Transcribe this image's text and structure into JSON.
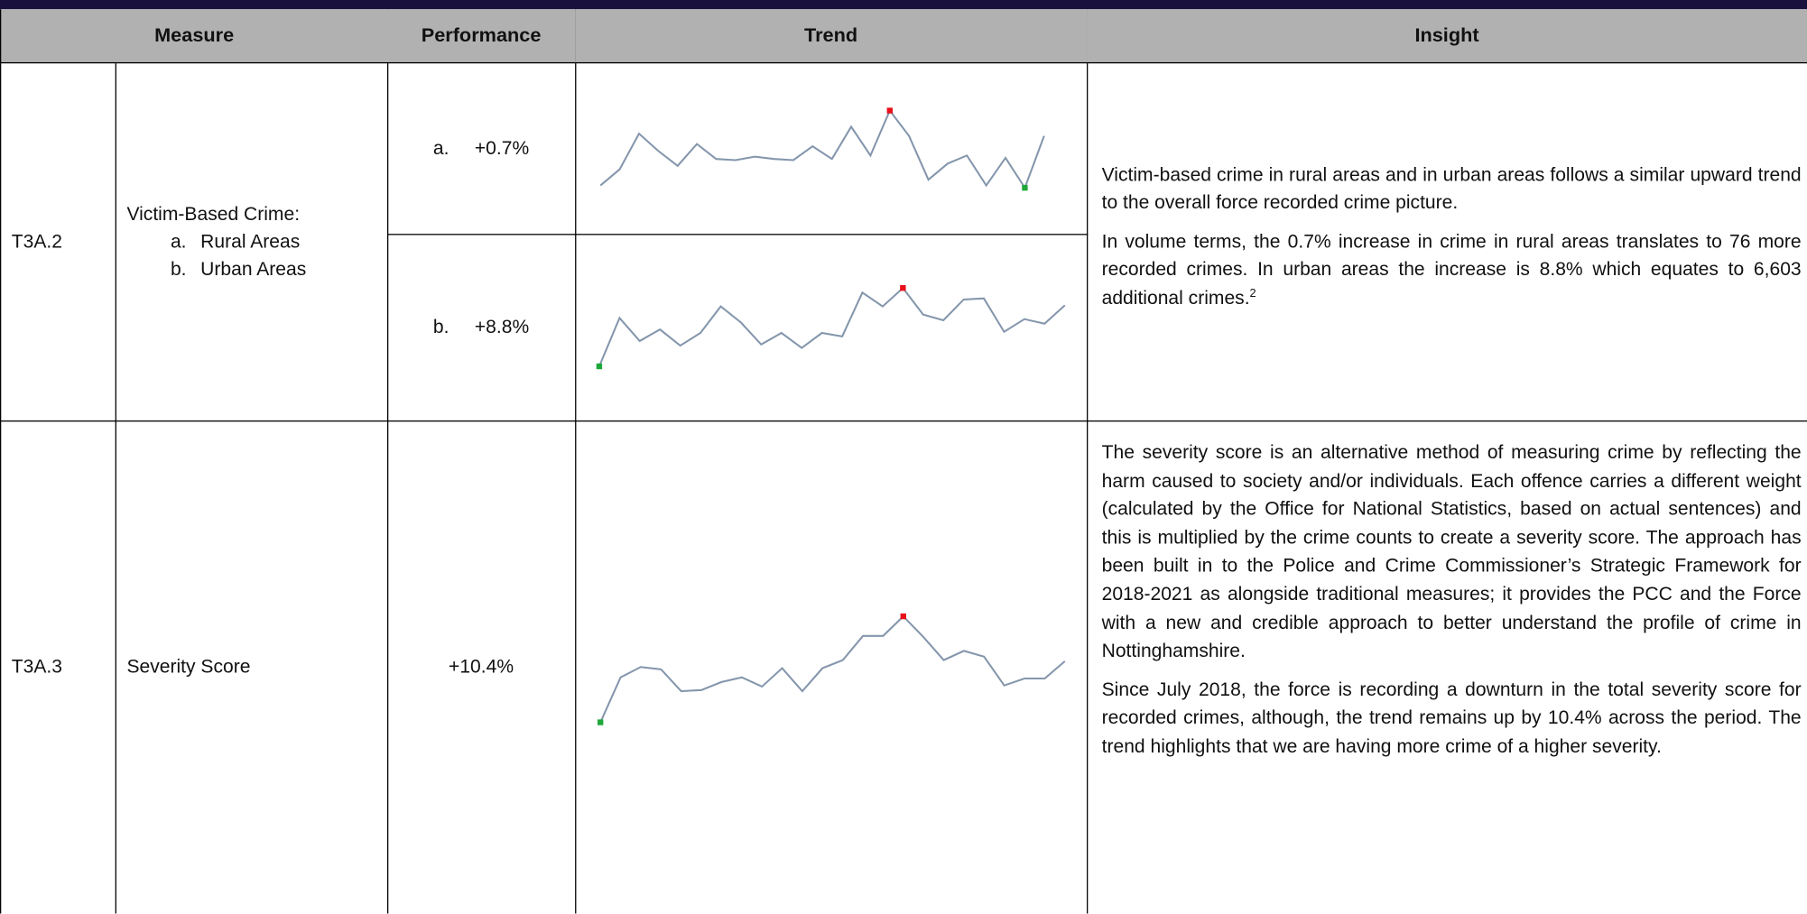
{
  "header": [
    "Measure",
    "Performance",
    "Trend",
    "Insight"
  ],
  "rows": [
    {
      "id": "T3A.2",
      "measure_title": "Victim-Based Crime:",
      "measure_items": [
        {
          "marker": "a.",
          "text": "Rural Areas"
        },
        {
          "marker": "b.",
          "text": "Urban Areas"
        }
      ],
      "performance": [
        {
          "marker": "a.",
          "value": "+0.7%"
        },
        {
          "marker": "b.",
          "value": "+8.8%"
        }
      ],
      "trends": [
        {
          "values": [
            9,
            23,
            54,
            39,
            26,
            45,
            32,
            31,
            34,
            32,
            31,
            43,
            32,
            60,
            35,
            74,
            52,
            14,
            28,
            35,
            9,
            33,
            7,
            52
          ]
        },
        {
          "values": [
            12,
            54,
            34,
            44,
            30,
            41,
            64,
            50,
            31,
            41,
            28,
            41,
            38,
            76,
            64,
            80,
            57,
            52,
            70,
            71,
            42,
            53,
            49,
            65
          ]
        }
      ],
      "insight": [
        "Victim-based crime in rural areas and in urban areas follows a similar upward trend to the overall force recorded crime picture.",
        "In volume terms, the 0.7% increase in crime in rural areas translates to 76 more recorded crimes.  In urban areas the increase is 8.8% which equates to 6,603 additional crimes."
      ],
      "footnote": "2"
    },
    {
      "id": "T3A.3",
      "measure_title": "Severity Score",
      "performance": [
        {
          "value": "+10.4%"
        }
      ],
      "trends": [
        {
          "values": [
            23,
            62,
            71,
            69,
            50,
            51,
            58,
            62,
            54,
            70,
            50,
            70,
            77,
            98,
            98,
            115,
            97,
            77,
            85,
            80,
            55,
            61,
            61,
            76
          ]
        }
      ],
      "insight": [
        "The severity score is an alternative method of measuring crime by reflecting the harm caused to society and/or individuals. Each offence carries a different weight (calculated by the Office for National Statistics, based on actual sentences) and this is multiplied by the crime counts to create a severity score. The approach has been built in to the Police and Crime Commissioner’s Strategic Framework for 2018-2021 as alongside traditional measures; it provides the PCC and the Force with a new and credible approach to better understand the profile of crime in Nottinghamshire.",
        "Since July 2018, the force is recording a downturn in the total severity score for recorded crimes, although, the trend remains up by 10.4% across the period. The trend highlights that we are having more crime of a higher severity."
      ]
    }
  ],
  "sparkline": {
    "line_color": "#8496ac",
    "high_color": "#e8101a",
    "low_color": "#1fa83a"
  }
}
